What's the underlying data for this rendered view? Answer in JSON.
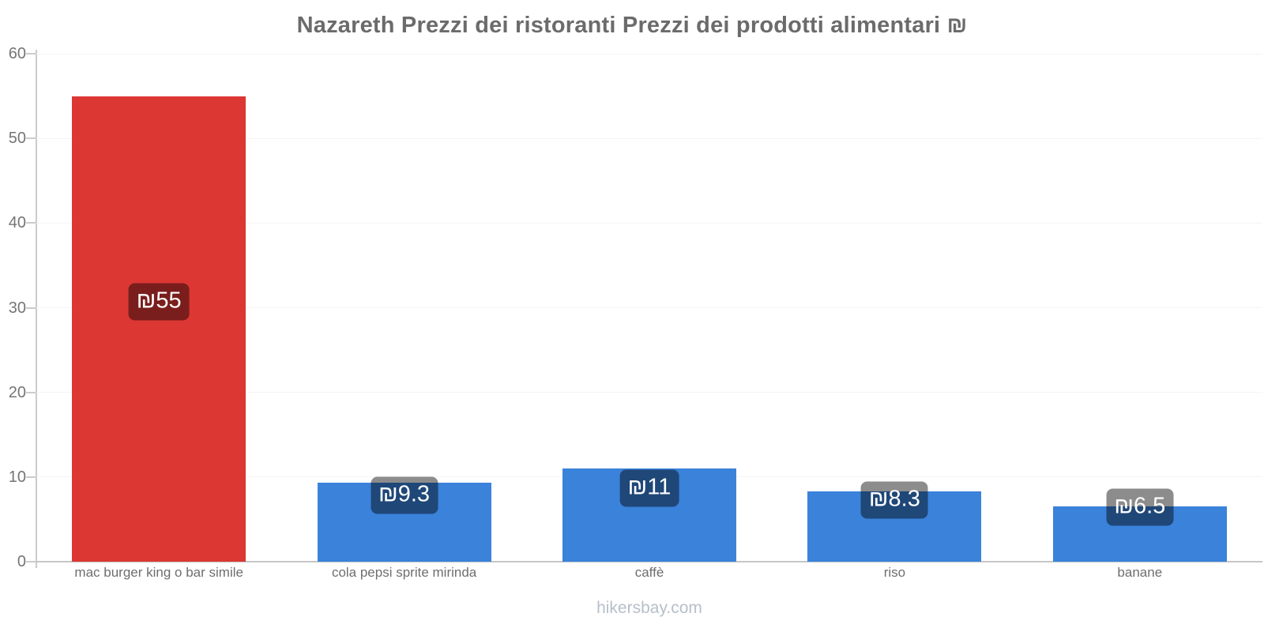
{
  "header": {
    "title": "Nazareth Prezzi dei ristoranti Prezzi dei prodotti alimentari ₪"
  },
  "footer": {
    "site": "hikersbay.com"
  },
  "chart_data": {
    "type": "bar",
    "title": "Nazareth Prezzi dei ristoranti Prezzi dei prodotti alimentari ₪",
    "currency_symbol": "₪",
    "categories": [
      "mac burger king o bar simile",
      "cola pepsi sprite mirinda",
      "caffè",
      "riso",
      "banane"
    ],
    "values": [
      55,
      9.3,
      11,
      8.3,
      6.5
    ],
    "value_labels": [
      "₪55",
      "₪9.3",
      "₪11",
      "₪8.3",
      "₪6.5"
    ],
    "bar_colors": [
      "#dc3733",
      "#3a82da",
      "#3a82da",
      "#3a82da",
      "#3a82da"
    ],
    "accent_red": "#dc3733",
    "accent_blue": "#3a82da",
    "badge_background": "rgba(0,0,0,0.45)",
    "badge_text_color": "#ffffff",
    "yticks": [
      0,
      10,
      20,
      30,
      40,
      50,
      60
    ],
    "ylim": [
      0,
      60
    ],
    "xlabel": "",
    "ylabel": "",
    "grid": true,
    "legend": "none"
  }
}
